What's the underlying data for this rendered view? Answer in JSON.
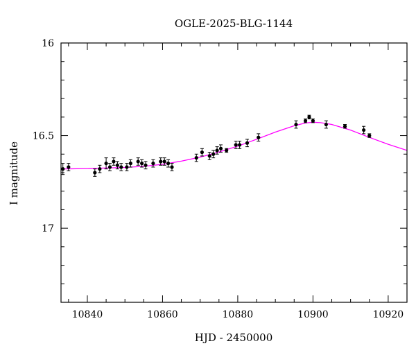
{
  "chart_data": {
    "type": "scatter",
    "title": "OGLE-2025-BLG-1144",
    "xlabel": "HJD - 2450000",
    "ylabel": "I magnitude",
    "xlim": [
      10833,
      10925
    ],
    "ylim": [
      17.4,
      16.0
    ],
    "y_inverted": true,
    "grid": false,
    "x_ticks": [
      10840,
      10860,
      10880,
      10900,
      10920
    ],
    "x_ticklabels": [
      "10840",
      "10860",
      "10880",
      "10900",
      "10920"
    ],
    "y_ticks": [
      16,
      16.5,
      17
    ],
    "y_ticklabels": [
      "16",
      "16.5",
      "17"
    ],
    "points": [
      {
        "x": 10833.5,
        "y": 16.68,
        "err": 0.03
      },
      {
        "x": 10835.0,
        "y": 16.67,
        "err": 0.02
      },
      {
        "x": 10842.0,
        "y": 16.7,
        "err": 0.02
      },
      {
        "x": 10843.3,
        "y": 16.68,
        "err": 0.02
      },
      {
        "x": 10845.0,
        "y": 16.65,
        "err": 0.03
      },
      {
        "x": 10846.0,
        "y": 16.67,
        "err": 0.02
      },
      {
        "x": 10847.0,
        "y": 16.64,
        "err": 0.02
      },
      {
        "x": 10848.0,
        "y": 16.66,
        "err": 0.02
      },
      {
        "x": 10849.0,
        "y": 16.67,
        "err": 0.02
      },
      {
        "x": 10850.5,
        "y": 16.67,
        "err": 0.02
      },
      {
        "x": 10851.5,
        "y": 16.65,
        "err": 0.02
      },
      {
        "x": 10853.5,
        "y": 16.64,
        "err": 0.02
      },
      {
        "x": 10854.5,
        "y": 16.65,
        "err": 0.02
      },
      {
        "x": 10855.5,
        "y": 16.66,
        "err": 0.02
      },
      {
        "x": 10857.5,
        "y": 16.65,
        "err": 0.02
      },
      {
        "x": 10859.5,
        "y": 16.64,
        "err": 0.02
      },
      {
        "x": 10860.5,
        "y": 16.64,
        "err": 0.02
      },
      {
        "x": 10861.5,
        "y": 16.65,
        "err": 0.02
      },
      {
        "x": 10862.5,
        "y": 16.67,
        "err": 0.02
      },
      {
        "x": 10869.0,
        "y": 16.62,
        "err": 0.02
      },
      {
        "x": 10870.5,
        "y": 16.59,
        "err": 0.02
      },
      {
        "x": 10872.5,
        "y": 16.61,
        "err": 0.02
      },
      {
        "x": 10873.5,
        "y": 16.6,
        "err": 0.02
      },
      {
        "x": 10874.5,
        "y": 16.58,
        "err": 0.02
      },
      {
        "x": 10875.5,
        "y": 16.57,
        "err": 0.02
      },
      {
        "x": 10877.0,
        "y": 16.58,
        "err": 0.01
      },
      {
        "x": 10879.5,
        "y": 16.55,
        "err": 0.02
      },
      {
        "x": 10880.5,
        "y": 16.55,
        "err": 0.02
      },
      {
        "x": 10882.5,
        "y": 16.54,
        "err": 0.02
      },
      {
        "x": 10885.5,
        "y": 16.51,
        "err": 0.02
      },
      {
        "x": 10895.5,
        "y": 16.44,
        "err": 0.02
      },
      {
        "x": 10898.0,
        "y": 16.42,
        "err": 0.01
      },
      {
        "x": 10899.0,
        "y": 16.4,
        "err": 0.01
      },
      {
        "x": 10900.0,
        "y": 16.42,
        "err": 0.01
      },
      {
        "x": 10903.5,
        "y": 16.44,
        "err": 0.02
      },
      {
        "x": 10908.5,
        "y": 16.45,
        "err": 0.01
      },
      {
        "x": 10913.5,
        "y": 16.47,
        "err": 0.02
      },
      {
        "x": 10915.0,
        "y": 16.5,
        "err": 0.01
      }
    ],
    "model": {
      "color": "#ff00ff",
      "x": [
        10833,
        10840,
        10850,
        10855,
        10860,
        10865,
        10870,
        10875,
        10880,
        10885,
        10890,
        10895,
        10898,
        10900,
        10902,
        10905,
        10910,
        10915,
        10920,
        10925
      ],
      "y": [
        16.68,
        16.678,
        16.672,
        16.666,
        16.655,
        16.638,
        16.616,
        16.589,
        16.557,
        16.52,
        16.481,
        16.447,
        16.432,
        16.428,
        16.43,
        16.44,
        16.47,
        16.51,
        16.547,
        16.58
      ]
    },
    "point_color": "#000000",
    "axis_color": "#000000"
  }
}
